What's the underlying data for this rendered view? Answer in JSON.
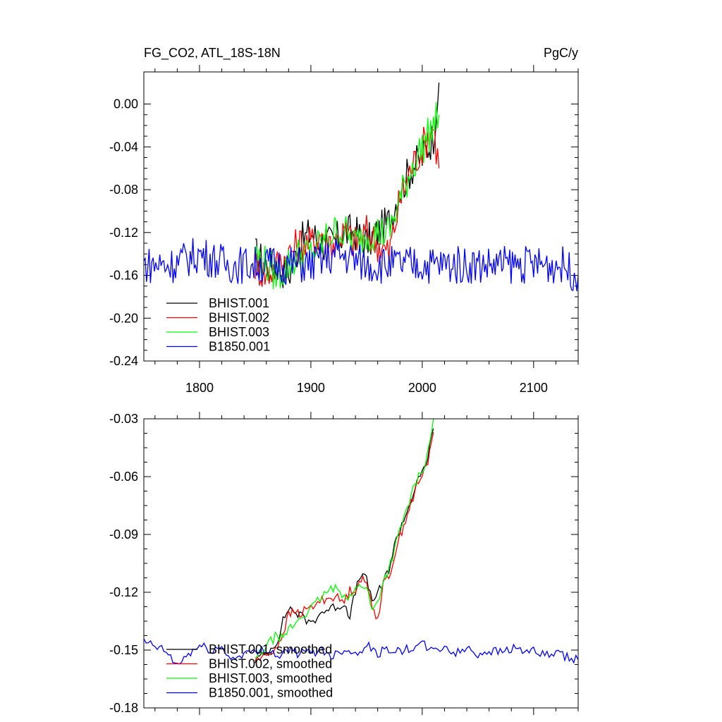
{
  "colors": {
    "BHIST.001": "#000000",
    "BHIST.002": "#ff0000",
    "BHIST.003": "#00ff00",
    "B1850.001": "#0000ff"
  },
  "chart_data": [
    {
      "type": "line",
      "title": "FG_CO2, ATL_18S-18N",
      "units": "PgC/y",
      "xlim": [
        1750,
        2140
      ],
      "ylim": [
        -0.24,
        0.03
      ],
      "xticks": [
        1800,
        1900,
        2000,
        2100
      ],
      "xtick_labels": [
        "1800",
        "1900",
        "2000",
        "2100"
      ],
      "yticks": [
        0.0,
        -0.04,
        -0.08,
        -0.12,
        -0.16,
        -0.2,
        -0.24
      ],
      "ytick_labels": [
        "0.00",
        "-0.04",
        "-0.08",
        "-0.12",
        "-0.16",
        "-0.20",
        "-0.24"
      ],
      "legend_position": "bottom-left",
      "legend": [
        "BHIST.001",
        "BHIST.002",
        "BHIST.003",
        "B1850.001"
      ],
      "series": [
        {
          "name": "BHIST.001",
          "x": [
            1850,
            1860,
            1870,
            1880,
            1890,
            1900,
            1910,
            1920,
            1930,
            1940,
            1950,
            1960,
            1970,
            1980,
            1990,
            2000,
            2005,
            2010,
            2015
          ],
          "y": [
            -0.14,
            -0.15,
            -0.15,
            -0.16,
            -0.13,
            -0.12,
            -0.13,
            -0.13,
            -0.12,
            -0.12,
            -0.13,
            -0.12,
            -0.11,
            -0.08,
            -0.06,
            -0.05,
            -0.04,
            -0.03,
            0.02
          ]
        },
        {
          "name": "BHIST.002",
          "x": [
            1850,
            1860,
            1870,
            1880,
            1890,
            1900,
            1910,
            1920,
            1930,
            1940,
            1950,
            1960,
            1970,
            1980,
            1990,
            2000,
            2005,
            2010,
            2015
          ],
          "y": [
            -0.15,
            -0.16,
            -0.15,
            -0.14,
            -0.13,
            -0.13,
            -0.12,
            -0.13,
            -0.12,
            -0.13,
            -0.12,
            -0.13,
            -0.14,
            -0.09,
            -0.06,
            -0.04,
            -0.03,
            -0.02,
            -0.06
          ]
        },
        {
          "name": "BHIST.003",
          "x": [
            1850,
            1860,
            1870,
            1880,
            1890,
            1900,
            1910,
            1920,
            1930,
            1940,
            1950,
            1960,
            1970,
            1980,
            1990,
            2000,
            2005,
            2010,
            2015
          ],
          "y": [
            -0.14,
            -0.15,
            -0.16,
            -0.15,
            -0.14,
            -0.14,
            -0.13,
            -0.12,
            -0.12,
            -0.13,
            -0.12,
            -0.12,
            -0.12,
            -0.09,
            -0.06,
            -0.04,
            -0.03,
            -0.02,
            -0.01
          ]
        },
        {
          "name": "B1850.001",
          "x": [
            1750,
            1775,
            1800,
            1825,
            1850,
            1875,
            1900,
            1925,
            1950,
            1975,
            2000,
            2025,
            2050,
            2075,
            2100,
            2125,
            2140
          ],
          "y": [
            -0.15,
            -0.15,
            -0.14,
            -0.15,
            -0.15,
            -0.15,
            -0.15,
            -0.14,
            -0.15,
            -0.15,
            -0.15,
            -0.15,
            -0.15,
            -0.15,
            -0.15,
            -0.15,
            -0.16
          ]
        }
      ]
    },
    {
      "type": "line",
      "xlim": [
        1750,
        2140
      ],
      "ylim": [
        -0.18,
        -0.03
      ],
      "xticks": [
        1800,
        1900,
        2000,
        2100
      ],
      "yticks": [
        -0.03,
        -0.06,
        -0.09,
        -0.12,
        -0.15,
        -0.18
      ],
      "ytick_labels": [
        "-0.03",
        "-0.06",
        "-0.09",
        "-0.12",
        "-0.15",
        "-0.18"
      ],
      "legend_position": "bottom-left",
      "legend": [
        "BHIST.001, smoothed",
        "BHIST.002, smoothed",
        "BHIST.003, smoothed",
        "B1850.001, smoothed"
      ],
      "series": [
        {
          "name": "BHIST.001, smoothed",
          "x": [
            1850,
            1860,
            1870,
            1875,
            1880,
            1885,
            1890,
            1900,
            1910,
            1920,
            1930,
            1935,
            1940,
            1945,
            1950,
            1955,
            1960,
            1965,
            1970,
            1975,
            1980,
            1985,
            1990,
            1995,
            2000,
            2005,
            2010
          ],
          "y": [
            -0.155,
            -0.152,
            -0.145,
            -0.135,
            -0.128,
            -0.13,
            -0.132,
            -0.136,
            -0.13,
            -0.128,
            -0.126,
            -0.132,
            -0.12,
            -0.11,
            -0.114,
            -0.124,
            -0.121,
            -0.115,
            -0.108,
            -0.096,
            -0.087,
            -0.08,
            -0.072,
            -0.064,
            -0.058,
            -0.05,
            -0.035
          ]
        },
        {
          "name": "BHIST.002, smoothed",
          "x": [
            1850,
            1860,
            1870,
            1875,
            1880,
            1885,
            1890,
            1900,
            1910,
            1920,
            1930,
            1935,
            1940,
            1945,
            1950,
            1955,
            1960,
            1965,
            1970,
            1975,
            1980,
            1985,
            1990,
            1995,
            2000,
            2005,
            2010
          ],
          "y": [
            -0.155,
            -0.153,
            -0.148,
            -0.141,
            -0.132,
            -0.13,
            -0.131,
            -0.128,
            -0.124,
            -0.122,
            -0.125,
            -0.119,
            -0.118,
            -0.113,
            -0.116,
            -0.126,
            -0.134,
            -0.116,
            -0.112,
            -0.101,
            -0.091,
            -0.082,
            -0.074,
            -0.065,
            -0.06,
            -0.052,
            -0.037
          ]
        },
        {
          "name": "BHIST.003, smoothed",
          "x": [
            1850,
            1860,
            1870,
            1875,
            1880,
            1885,
            1890,
            1900,
            1910,
            1920,
            1930,
            1935,
            1940,
            1945,
            1950,
            1955,
            1960,
            1965,
            1970,
            1975,
            1980,
            1985,
            1990,
            1995,
            2000,
            2005,
            2010
          ],
          "y": [
            -0.155,
            -0.148,
            -0.142,
            -0.145,
            -0.139,
            -0.137,
            -0.133,
            -0.129,
            -0.122,
            -0.118,
            -0.121,
            -0.122,
            -0.119,
            -0.116,
            -0.117,
            -0.13,
            -0.125,
            -0.114,
            -0.108,
            -0.098,
            -0.088,
            -0.079,
            -0.07,
            -0.062,
            -0.057,
            -0.048,
            -0.03
          ]
        },
        {
          "name": "B1850.001, smoothed",
          "x": [
            1750,
            1760,
            1770,
            1780,
            1790,
            1800,
            1810,
            1820,
            1830,
            1840,
            1850,
            1860,
            1870,
            1880,
            1890,
            1900,
            1910,
            1920,
            1930,
            1940,
            1950,
            1960,
            1970,
            1980,
            1990,
            2000,
            2010,
            2020,
            2030,
            2040,
            2050,
            2060,
            2070,
            2080,
            2090,
            2100,
            2110,
            2120,
            2130,
            2140
          ],
          "y": [
            -0.146,
            -0.148,
            -0.151,
            -0.158,
            -0.152,
            -0.148,
            -0.15,
            -0.149,
            -0.155,
            -0.151,
            -0.152,
            -0.149,
            -0.153,
            -0.15,
            -0.152,
            -0.151,
            -0.15,
            -0.153,
            -0.149,
            -0.152,
            -0.147,
            -0.152,
            -0.149,
            -0.151,
            -0.149,
            -0.147,
            -0.151,
            -0.148,
            -0.152,
            -0.149,
            -0.152,
            -0.15,
            -0.151,
            -0.149,
            -0.15,
            -0.151,
            -0.153,
            -0.152,
            -0.154,
            -0.155
          ]
        }
      ]
    }
  ]
}
